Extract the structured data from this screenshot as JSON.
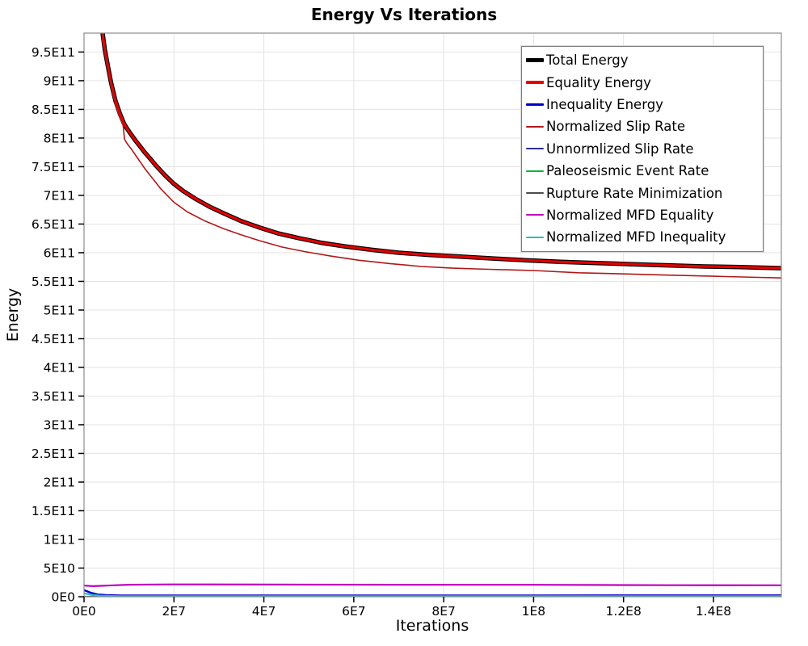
{
  "title": "Energy Vs Iterations",
  "axes": {
    "x_label": "Iterations",
    "y_label": "Energy"
  },
  "colors": {
    "background": "#ffffff",
    "grid": "#e3e3e3",
    "plot_border": "#8c8c8c",
    "tick": "#000000",
    "legend_border": "#7d7d7d"
  },
  "chart_data": {
    "type": "line",
    "title": "Energy Vs Iterations",
    "xlabel": "Iterations",
    "ylabel": "Energy",
    "xlim": [
      0,
      155100000
    ],
    "ylim": [
      0,
      983000000000
    ],
    "grid": true,
    "legend_position": "top-right",
    "x_ticks": [
      {
        "v": 0,
        "label": "0E0"
      },
      {
        "v": 20000000,
        "label": "2E7"
      },
      {
        "v": 40000000,
        "label": "4E7"
      },
      {
        "v": 60000000,
        "label": "6E7"
      },
      {
        "v": 80000000,
        "label": "8E7"
      },
      {
        "v": 100000000,
        "label": "1E8"
      },
      {
        "v": 120000000,
        "label": "1.2E8"
      },
      {
        "v": 140000000,
        "label": "1.4E8"
      }
    ],
    "y_ticks": [
      {
        "v": 0,
        "label": "0E0"
      },
      {
        "v": 50000000000.0,
        "label": "5E10"
      },
      {
        "v": 100000000000.0,
        "label": "1E11"
      },
      {
        "v": 150000000000.0,
        "label": "1.5E11"
      },
      {
        "v": 200000000000.0,
        "label": "2E11"
      },
      {
        "v": 250000000000.0,
        "label": "2.5E11"
      },
      {
        "v": 300000000000.0,
        "label": "3E11"
      },
      {
        "v": 350000000000.0,
        "label": "3.5E11"
      },
      {
        "v": 400000000000.0,
        "label": "4E11"
      },
      {
        "v": 450000000000.0,
        "label": "4.5E11"
      },
      {
        "v": 500000000000.0,
        "label": "5E11"
      },
      {
        "v": 550000000000.0,
        "label": "5.5E11"
      },
      {
        "v": 600000000000.0,
        "label": "6E11"
      },
      {
        "v": 650000000000.0,
        "label": "6.5E11"
      },
      {
        "v": 700000000000.0,
        "label": "7E11"
      },
      {
        "v": 750000000000.0,
        "label": "7.5E11"
      },
      {
        "v": 800000000000.0,
        "label": "8E11"
      },
      {
        "v": 850000000000.0,
        "label": "8.5E11"
      },
      {
        "v": 900000000000.0,
        "label": "9E11"
      },
      {
        "v": 950000000000.0,
        "label": "9.5E11"
      }
    ],
    "series": [
      {
        "name": "Total Energy",
        "color": "#000000",
        "width": 5.5,
        "swatch_height": 5,
        "points": [
          [
            2500000.0,
            1400000000000.0
          ],
          [
            3200000.0,
            1150000000000.0
          ],
          [
            4100000.0,
            985000000000.0
          ],
          [
            4600000.0,
            955000000000.0
          ],
          [
            5200000.0,
            930000000000.0
          ],
          [
            6000000.0,
            897000000000.0
          ],
          [
            7000000.0,
            865000000000.0
          ],
          [
            8000000.0,
            842000000000.0
          ],
          [
            8900000.0,
            825000000000.0
          ],
          [
            9600000.0,
            816000000000.0
          ],
          [
            10500000.0,
            806000000000.0
          ],
          [
            11500000.0,
            795000000000.0
          ],
          [
            12500000.0,
            785000000000.0
          ],
          [
            13500000.0,
            775000000000.0
          ],
          [
            14500000.0,
            766000000000.0
          ],
          [
            16000000.0,
            752000000000.0
          ],
          [
            18000000.0,
            735000000000.0
          ],
          [
            20000000.0,
            720000000000.0
          ],
          [
            22000000.0,
            708000000000.0
          ],
          [
            25000000.0,
            693000000000.0
          ],
          [
            28000000.0,
            680000000000.0
          ],
          [
            31000000.0,
            669000000000.0
          ],
          [
            35000000.0,
            655000000000.0
          ],
          [
            39000000.0,
            644000000000.0
          ],
          [
            43000000.0,
            634000000000.0
          ],
          [
            48000000.0,
            625000000000.0
          ],
          [
            53000000.0,
            617000000000.0
          ],
          [
            58000000.0,
            611000000000.0
          ],
          [
            64000000.0,
            605000000000.0
          ],
          [
            70000000.0,
            600000000000.0
          ],
          [
            77000000.0,
            596000000000.0
          ],
          [
            84000000.0,
            593000000000.0
          ],
          [
            91000000.0,
            590000000000.0
          ],
          [
            98000000.0,
            587000000000.0
          ],
          [
            106000000.0,
            584000000000.0
          ],
          [
            114000000.0,
            582000000000.0
          ],
          [
            122000000.0,
            580000000000.0
          ],
          [
            130000000.0,
            578000000000.0
          ],
          [
            138000000.0,
            576000000000.0
          ],
          [
            146000000.0,
            575000000000.0
          ],
          [
            155100000.0,
            573000000000.0
          ]
        ]
      },
      {
        "name": "Equality Energy",
        "color": "#e60000",
        "width": 3.2,
        "swatch_height": 4,
        "points": [
          [
            2500000.0,
            1400000000000.0
          ],
          [
            3200000.0,
            1150000000000.0
          ],
          [
            4100000.0,
            985000000000.0
          ],
          [
            4600000.0,
            955000000000.0
          ],
          [
            5200000.0,
            930000000000.0
          ],
          [
            6000000.0,
            897000000000.0
          ],
          [
            7000000.0,
            865000000000.0
          ],
          [
            8000000.0,
            842000000000.0
          ],
          [
            8900000.0,
            825000000000.0
          ],
          [
            9600000.0,
            816000000000.0
          ],
          [
            10500000.0,
            806000000000.0
          ],
          [
            11500000.0,
            795000000000.0
          ],
          [
            12500000.0,
            785000000000.0
          ],
          [
            13500000.0,
            775000000000.0
          ],
          [
            14500000.0,
            766000000000.0
          ],
          [
            16000000.0,
            752000000000.0
          ],
          [
            18000000.0,
            735000000000.0
          ],
          [
            20000000.0,
            720000000000.0
          ],
          [
            22000000.0,
            708000000000.0
          ],
          [
            25000000.0,
            693000000000.0
          ],
          [
            28000000.0,
            680000000000.0
          ],
          [
            31000000.0,
            669000000000.0
          ],
          [
            35000000.0,
            655000000000.0
          ],
          [
            39000000.0,
            644000000000.0
          ],
          [
            43000000.0,
            634000000000.0
          ],
          [
            48000000.0,
            625000000000.0
          ],
          [
            53000000.0,
            617000000000.0
          ],
          [
            58000000.0,
            611000000000.0
          ],
          [
            64000000.0,
            605000000000.0
          ],
          [
            70000000.0,
            600000000000.0
          ],
          [
            77000000.0,
            596000000000.0
          ],
          [
            84000000.0,
            593000000000.0
          ],
          [
            91000000.0,
            590000000000.0
          ],
          [
            98000000.0,
            587000000000.0
          ],
          [
            106000000.0,
            584000000000.0
          ],
          [
            114000000.0,
            582000000000.0
          ],
          [
            122000000.0,
            580000000000.0
          ],
          [
            130000000.0,
            578000000000.0
          ],
          [
            138000000.0,
            576000000000.0
          ],
          [
            146000000.0,
            575000000000.0
          ],
          [
            155100000.0,
            573000000000.0
          ]
        ]
      },
      {
        "name": "Inequality Energy",
        "color": "#0000cc",
        "width": 2.4,
        "swatch_height": 3,
        "points": [
          [
            0,
            11500000000.0
          ],
          [
            1500000.0,
            7000000000.0
          ],
          [
            3000000.0,
            4000000000.0
          ],
          [
            5000000.0,
            2800000000.0
          ],
          [
            8000000.0,
            2300000000.0
          ],
          [
            15000000.0,
            2100000000.0
          ],
          [
            30000000.0,
            2100000000.0
          ],
          [
            60000000.0,
            2200000000.0
          ],
          [
            100000000.0,
            2300000000.0
          ],
          [
            155100000.0,
            2400000000.0
          ]
        ]
      },
      {
        "name": "Normalized Slip Rate",
        "color": "#b01818",
        "width": 1.6,
        "swatch_height": 2,
        "points": [
          [
            2500000.0,
            1380000000000.0
          ],
          [
            3200000.0,
            1130000000000.0
          ],
          [
            4100000.0,
            970000000000.0
          ],
          [
            5200000.0,
            922000000000.0
          ],
          [
            6000000.0,
            890000000000.0
          ],
          [
            7000000.0,
            858000000000.0
          ],
          [
            8000000.0,
            836000000000.0
          ],
          [
            8700000.0,
            822000000000.0
          ],
          [
            9000000.0,
            798000000000.0
          ],
          [
            9600000.0,
            790000000000.0
          ],
          [
            10500000.0,
            781000000000.0
          ],
          [
            12000000.0,
            764000000000.0
          ],
          [
            13500000.0,
            747000000000.0
          ],
          [
            15000000.0,
            732000000000.0
          ],
          [
            17000000.0,
            712000000000.0
          ],
          [
            20000000.0,
            688000000000.0
          ],
          [
            23000000.0,
            671000000000.0
          ],
          [
            27000000.0,
            655000000000.0
          ],
          [
            31000000.0,
            642000000000.0
          ],
          [
            35000000.0,
            631000000000.0
          ],
          [
            39000000.0,
            621000000000.0
          ],
          [
            44000000.0,
            610000000000.0
          ],
          [
            49000000.0,
            602000000000.0
          ],
          [
            55000000.0,
            594000000000.0
          ],
          [
            61000000.0,
            587000000000.0
          ],
          [
            68000000.0,
            581000000000.0
          ],
          [
            75000000.0,
            576000000000.0
          ],
          [
            82000000.0,
            573000000000.0
          ],
          [
            90000000.0,
            571000000000.0
          ],
          [
            100000000.0,
            569000000000.0
          ],
          [
            110000000.0,
            565000000000.0
          ],
          [
            120000000.0,
            563000000000.0
          ],
          [
            130000000.0,
            561000000000.0
          ],
          [
            140000000.0,
            559000000000.0
          ],
          [
            150000000.0,
            557000000000.0
          ],
          [
            155100000.0,
            556000000000.0
          ]
        ]
      },
      {
        "name": "Unnormlized Slip Rate",
        "color": "#2e2e99",
        "width": 1.6,
        "swatch_height": 2,
        "points": [
          [
            0,
            400000000.0
          ],
          [
            155100000.0,
            400000000.0
          ]
        ]
      },
      {
        "name": "Paleoseismic Event Rate",
        "color": "#00b830",
        "width": 1.6,
        "swatch_height": 2,
        "points": [
          [
            0,
            200000000.0
          ],
          [
            155100000.0,
            200000000.0
          ]
        ]
      },
      {
        "name": "Rupture Rate Minimization",
        "color": "#4d4d4d",
        "width": 1.6,
        "swatch_height": 2,
        "points": [
          [
            0,
            100000000.0
          ],
          [
            155100000.0,
            100000000.0
          ]
        ]
      },
      {
        "name": "Normalized MFD Equality",
        "color": "#bf00bf",
        "width": 2.2,
        "swatch_height": 2,
        "points": [
          [
            0,
            19500000000.0
          ],
          [
            2000000.0,
            18500000000.0
          ],
          [
            5000000.0,
            19500000000.0
          ],
          [
            10000000.0,
            21000000000.0
          ],
          [
            20000000.0,
            21500000000.0
          ],
          [
            40000000.0,
            21200000000.0
          ],
          [
            70000000.0,
            21000000000.0
          ],
          [
            100000000.0,
            20800000000.0
          ],
          [
            130000000.0,
            20200000000.0
          ],
          [
            155100000.0,
            20000000000.0
          ]
        ]
      },
      {
        "name": "Normalized MFD Inequality",
        "color": "#2fb8c4",
        "width": 2.2,
        "swatch_height": 2,
        "points": [
          [
            0,
            6000000000.0
          ],
          [
            2000000.0,
            3000000000.0
          ],
          [
            4000000.0,
            1500000000.0
          ],
          [
            8000000.0,
            1000000000.0
          ],
          [
            30000000.0,
            900000000.0
          ],
          [
            80000000.0,
            900000000.0
          ],
          [
            155100000.0,
            1000000000.0
          ]
        ]
      }
    ]
  }
}
